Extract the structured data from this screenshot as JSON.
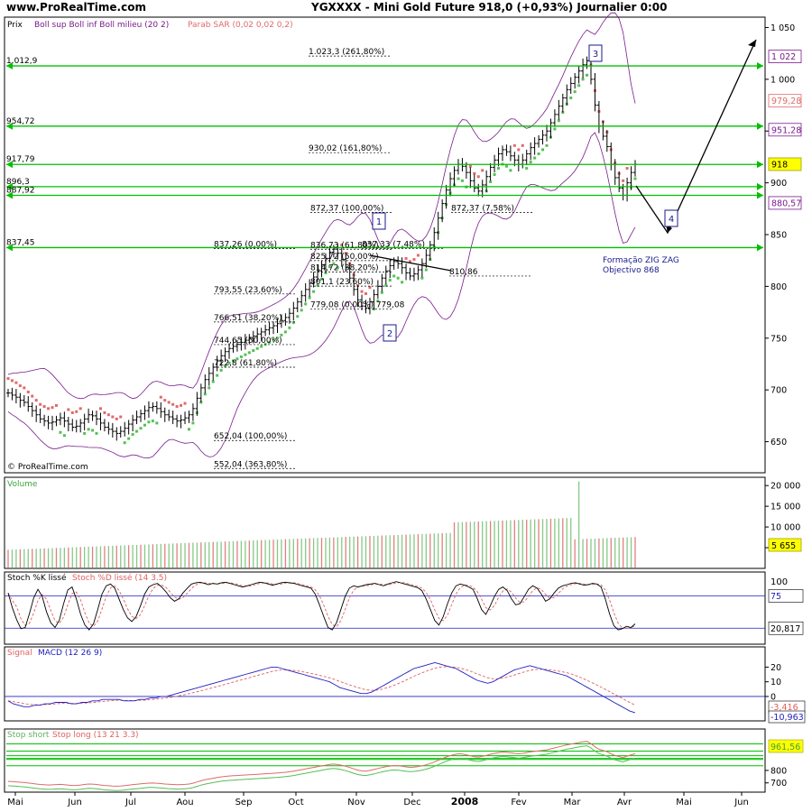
{
  "header": {
    "site": "www.ProRealTime.com",
    "title": "YGXXXX - Mini Gold Future    918,0 (+0,93%)    Journalier  0:00"
  },
  "colors": {
    "price_bar": "#000000",
    "bollinger": "#7a1a8c",
    "sar_up": "#55c055",
    "sar_down": "#e06a6a",
    "level_line": "#00c000",
    "volume": "#86c986",
    "macd": "#2020c0",
    "signal": "#e06060",
    "stoch_k": "#000000",
    "stoch_d": "#e06060",
    "value_tag_bg": "#ffff00"
  },
  "chart_data": [
    {
      "type": "candlestick",
      "title": "Prix",
      "legend": [
        {
          "name": "Boll sup Boll inf Boll milieu (20 2)",
          "color": "#7a1a8c"
        },
        {
          "name": "Parab SAR (0,02 0,02 0,2)",
          "color": "#e06a6a"
        }
      ],
      "ylim": [
        620,
        1060
      ],
      "y_ticks": [
        "1 050",
        "1 000",
        "950",
        "900",
        "850",
        "800",
        "750",
        "700",
        "650"
      ],
      "y_tick_values": [
        1050,
        1000,
        950,
        900,
        850,
        800,
        750,
        700,
        650
      ],
      "right_tags": [
        {
          "label": "1 022",
          "value": 1022,
          "color": "#7a1a8c",
          "bg": "#ffffff"
        },
        {
          "label": "979,28",
          "value": 979.28,
          "color": "#e06a6a",
          "bg": "#ffffff"
        },
        {
          "label": "951,28",
          "value": 951.28,
          "color": "#7a1a8c",
          "bg": "#ffffff"
        },
        {
          "label": "918",
          "value": 918,
          "color": "#000000",
          "bg": "#ffff00"
        },
        {
          "label": "880,57",
          "value": 880.57,
          "color": "#7a1a8c",
          "bg": "#ffffff"
        }
      ],
      "horizontal_levels": [
        1012.9,
        954.72,
        917.79,
        896.3,
        887.92,
        837.45
      ],
      "left_level_labels": [
        "1.012,9",
        "954,72",
        "917,79",
        "896,3",
        "887,92",
        "837,45"
      ],
      "fib_labels": [
        {
          "text": "1.023,3 (261,80%)",
          "value": 1023.3
        },
        {
          "text": "930,02 (161,80%)",
          "value": 930.02
        },
        {
          "text": "872,37 (100,00%)",
          "value": 872.37
        },
        {
          "text": "872,37 (7,58%)",
          "value": 872.37
        },
        {
          "text": "837,26 (0,00%)",
          "value": 837.26
        },
        {
          "text": "836,73 (61,80%)",
          "value": 836.73
        },
        {
          "text": "837,33 (7,48%)",
          "value": 837.33
        },
        {
          "text": "825,72 (50,00%)",
          "value": 825.72
        },
        {
          "text": "814,72 (38,20%)",
          "value": 814.72
        },
        {
          "text": "810,86",
          "value": 810.86
        },
        {
          "text": "801,1 (23,60%)",
          "value": 801.1
        },
        {
          "text": "793,55 (23,60%)",
          "value": 793.55
        },
        {
          "text": "779,08 (0,00%) 779,08",
          "value": 779.08
        },
        {
          "text": "766,51 (38,20%)",
          "value": 766.51
        },
        {
          "text": "744,65 (50,00%)",
          "value": 744.65
        },
        {
          "text": "722,8 (61,80%)",
          "value": 722.8
        },
        {
          "text": "652,04 (100,00%)",
          "value": 652.04
        },
        {
          "text": "552,04 (363,80%)",
          "value": 625
        }
      ],
      "wave_labels": [
        "1",
        "2",
        "3",
        "4"
      ],
      "annotation": [
        "Formação ZIG ZAG",
        "Objectivo 868"
      ],
      "copyright": "© ProRealTime.com",
      "close_series": [
        697,
        695,
        693,
        690,
        688,
        684,
        680,
        676,
        672,
        670,
        668,
        669,
        671,
        673,
        670,
        667,
        664,
        665,
        668,
        672,
        676,
        675,
        672,
        668,
        664,
        662,
        660,
        658,
        660,
        663,
        667,
        671,
        674,
        677,
        680,
        683,
        684,
        682,
        679,
        676,
        674,
        672,
        670,
        671,
        673,
        676,
        682,
        692,
        702,
        710,
        716,
        722,
        728,
        733,
        737,
        740,
        742,
        744,
        746,
        748,
        750,
        752,
        754,
        756,
        758,
        760,
        762,
        764,
        767,
        770,
        774,
        779,
        785,
        791,
        797,
        803,
        809,
        815,
        821,
        827,
        833,
        836,
        832,
        826,
        818,
        808,
        797,
        787,
        781,
        779,
        785,
        792,
        800,
        808,
        815,
        820,
        824,
        822,
        818,
        813,
        810,
        812,
        816,
        822,
        830,
        840,
        852,
        866,
        880,
        893,
        904,
        912,
        918,
        916,
        910,
        902,
        895,
        892,
        898,
        906,
        915,
        922,
        928,
        932,
        930,
        926,
        922,
        918,
        922,
        928,
        934,
        938,
        942,
        946,
        950,
        958,
        966,
        974,
        982,
        990,
        996,
        1002,
        1008,
        1014,
        1018,
        1000,
        975,
        955,
        945,
        935,
        918,
        905,
        895,
        888,
        900,
        910,
        918
      ]
    },
    {
      "type": "bar",
      "title": "Volume",
      "ylim": [
        0,
        22000
      ],
      "y_ticks": [
        "20 000",
        "15 000",
        "10 000",
        "5 000"
      ],
      "y_tick_values": [
        20000,
        15000,
        10000,
        5000
      ],
      "last_value": "5 655",
      "spike_value": 21000
    },
    {
      "type": "line",
      "title": "Stoch %K lissé",
      "title2": "Stoch %D lissé (14 3.5)",
      "ylim": [
        0,
        100
      ],
      "y_ticks": [
        "100"
      ],
      "y_tick_values": [
        100
      ],
      "levels": [
        75,
        20.817
      ],
      "right_tags": [
        "75",
        "20,817"
      ],
      "k_series": [
        80,
        55,
        35,
        20,
        22,
        45,
        72,
        86,
        74,
        48,
        30,
        22,
        34,
        62,
        85,
        90,
        70,
        44,
        26,
        18,
        28,
        52,
        78,
        92,
        95,
        88,
        70,
        52,
        38,
        32,
        40,
        58,
        78,
        90,
        94,
        96,
        90,
        82,
        72,
        66,
        70,
        80,
        88,
        95,
        97,
        98,
        96,
        94,
        96,
        95,
        97,
        98,
        96,
        94,
        92,
        90,
        92,
        94,
        96,
        98,
        97,
        95,
        93,
        95,
        97,
        98,
        97,
        96,
        94,
        92,
        90,
        88,
        78,
        60,
        40,
        22,
        18,
        30,
        52,
        74,
        88,
        92,
        90,
        92,
        94,
        95,
        96,
        94,
        92,
        95,
        97,
        99,
        97,
        95,
        93,
        91,
        89,
        84,
        70,
        52,
        34,
        26,
        40,
        62,
        80,
        92,
        95,
        93,
        90,
        86,
        70,
        52,
        44,
        58,
        74,
        86,
        90,
        84,
        70,
        60,
        62,
        74,
        86,
        92,
        88,
        78,
        66,
        70,
        80,
        88,
        92,
        94,
        96,
        97,
        95,
        93,
        94,
        96,
        95,
        90,
        70,
        45,
        25,
        18,
        20,
        24,
        22,
        28
      ]
    },
    {
      "type": "line",
      "title": "Signal",
      "title2": "MACD (12 26 9)",
      "ylim": [
        -16,
        27
      ],
      "y_ticks": [
        "20",
        "10",
        "0"
      ],
      "y_tick_values": [
        20,
        10,
        0
      ],
      "right_tags": [
        "-3,416",
        "-10,963"
      ],
      "macd_series": [
        -3,
        -5,
        -6,
        -7,
        -7,
        -6,
        -6,
        -5,
        -5,
        -4,
        -4,
        -4,
        -5,
        -5,
        -4,
        -4,
        -3,
        -3,
        -2,
        -2,
        -2,
        -2,
        -3,
        -3,
        -3,
        -2,
        -2,
        -1,
        -1,
        0,
        0,
        1,
        2,
        3,
        4,
        5,
        6,
        7,
        8,
        9,
        10,
        11,
        12,
        13,
        14,
        15,
        16,
        17,
        18,
        19,
        20,
        20,
        19,
        18,
        17,
        16,
        15,
        14,
        13,
        12,
        11,
        10,
        8,
        6,
        5,
        4,
        3,
        2,
        2,
        3,
        5,
        7,
        9,
        11,
        13,
        15,
        17,
        19,
        20,
        21,
        22,
        23,
        22,
        21,
        20,
        19,
        17,
        15,
        13,
        11,
        10,
        9,
        10,
        12,
        14,
        16,
        18,
        19,
        20,
        21,
        20,
        19,
        18,
        17,
        16,
        15,
        14,
        12,
        10,
        8,
        6,
        4,
        2,
        0,
        -2,
        -4,
        -6,
        -8,
        -10,
        -11
      ]
    },
    {
      "type": "line",
      "title": "Stop short",
      "title2": "Stop long (13 21 3.3)",
      "ylim": [
        640,
        1060
      ],
      "y_ticks": [
        "800",
        "700"
      ],
      "y_tick_values": [
        800,
        700
      ],
      "right_tags": [
        "961,56"
      ]
    }
  ],
  "x_axis": {
    "labels": [
      "Mai",
      "Jun",
      "Jul",
      "Aou",
      "Sep",
      "Oct",
      "Nov",
      "Dec",
      "2008",
      "Fev",
      "Mar",
      "Avr",
      "Mai",
      "Jun"
    ]
  }
}
